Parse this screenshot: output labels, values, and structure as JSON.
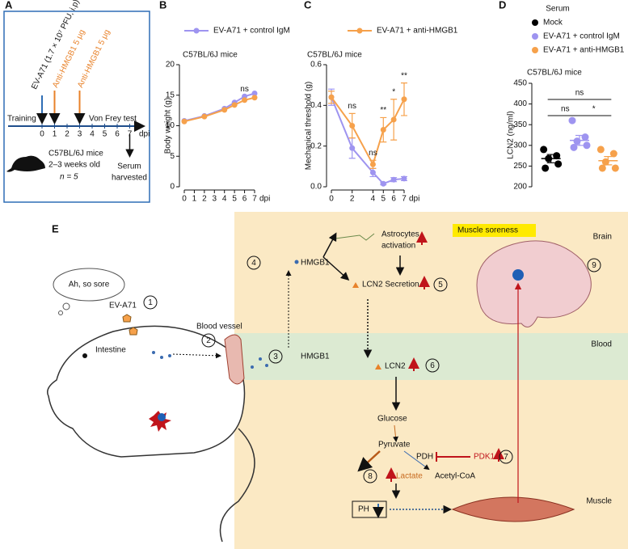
{
  "chart_data": [
    {
      "type": "line",
      "panel": "B",
      "subtitle": "C57BL/6J mice",
      "ylabel": "Body weight (g)",
      "xlabel": "dpi",
      "x": [
        0,
        2,
        4,
        5,
        6,
        7
      ],
      "xlim": [
        0,
        7
      ],
      "xticks": [
        0,
        1,
        2,
        3,
        4,
        5,
        6,
        7
      ],
      "ylim": [
        0,
        20
      ],
      "yticks": [
        0,
        5,
        10,
        15,
        20
      ],
      "series": [
        {
          "color": "#9e94f0",
          "values": [
            10.8,
            11.6,
            12.8,
            13.8,
            14.8,
            15.3
          ]
        },
        {
          "color": "#f6a14b",
          "values": [
            10.7,
            11.5,
            12.6,
            13.4,
            14.2,
            14.6
          ]
        }
      ],
      "annotations": [
        {
          "x": 6,
          "text": "ns"
        }
      ]
    },
    {
      "type": "line",
      "panel": "C",
      "subtitle": "C57BL/6J mice",
      "ylabel": "Mechanical threshold (g)",
      "xlabel": "dpi",
      "x": [
        0,
        2,
        4,
        5,
        6,
        7
      ],
      "xlim": [
        0,
        7
      ],
      "xticks": [
        0,
        2,
        4,
        5,
        6,
        7
      ],
      "ylim": [
        0,
        0.6
      ],
      "yticks": [
        {
          "value": 0,
          "label": "0.0"
        },
        0.2,
        0.4,
        0.6
      ],
      "series": [
        {
          "name": "EV-A71 + control IgM",
          "color": "#9e94f0",
          "values": [
            0.44,
            0.19,
            0.07,
            0.015,
            0.035,
            0.04
          ],
          "errors": [
            0.04,
            0.05,
            0.02,
            0.005,
            0.01,
            0.01
          ]
        },
        {
          "name": "EV-A71 + anti-HMGB1",
          "color": "#f6a14b",
          "values": [
            0.44,
            0.3,
            0.11,
            0.28,
            0.33,
            0.43
          ],
          "errors": [
            0.03,
            0.06,
            0.02,
            0.06,
            0.1,
            0.08
          ]
        }
      ],
      "annotations": [
        {
          "x": 2,
          "text": "ns"
        },
        {
          "x": 4,
          "text": "ns"
        },
        {
          "x": 5,
          "text": "**"
        },
        {
          "x": 6,
          "text": "*"
        },
        {
          "x": 7,
          "text": "**"
        }
      ]
    },
    {
      "type": "dot",
      "panel": "D",
      "title": "Serum",
      "subtitle": "C57BL/6J mice",
      "ylabel": "LCN2 (ng/ml)",
      "ylim": [
        200,
        450
      ],
      "yticks": [
        200,
        250,
        300,
        350,
        400,
        450
      ],
      "series": [
        {
          "name": "Mock",
          "color": "#000000",
          "values": [
            290,
            275,
            268,
            255,
            245
          ],
          "mean": 268,
          "error": 10
        },
        {
          "name": "EV-A71 + control IgM",
          "color": "#9e94f0",
          "values": [
            360,
            320,
            310,
            300,
            295
          ],
          "mean": 312,
          "error": 12
        },
        {
          "name": "EV-A71 + anti-HMGB1",
          "color": "#f6a14b",
          "values": [
            290,
            280,
            260,
            245,
            245
          ],
          "mean": 263,
          "error": 10
        }
      ],
      "annotations": [
        "ns",
        "ns",
        "*"
      ]
    }
  ],
  "panel_a": {
    "label": "A",
    "infection": "EV-A71 (1.7 × 10⁷ PFU, i.p)",
    "treatment_1": "Anti-HMGB1 5 μg",
    "treatment_2": "Anti-HMGB1 5 μg",
    "training": "Training",
    "test": "Von Frey test",
    "ticks": [
      0,
      1,
      2,
      3,
      4,
      5,
      6,
      7
    ],
    "unit": "dpi",
    "strain": "C57BL/6J mice",
    "age": "2–3 weeks old",
    "n": "n = 5",
    "serum": [
      "Serum",
      "harvested"
    ]
  },
  "panel_e": {
    "label": "E",
    "thought": "Ah, so sore",
    "virus": "EV-A71",
    "intestine": "Intestine",
    "vessel": "Blood vessel",
    "hmgb1_blood": "HMGB1",
    "hmgb1_brain": "HMGB1",
    "astro": [
      "Astrocytes",
      "activation"
    ],
    "secretion": "LCN2 Secretion",
    "lcn2": "LCN2",
    "glucose": "Glucose",
    "pyruvate": "Pyruvate",
    "pdh": "PDH",
    "pdk1": "PDK1",
    "lactate": "Lactate",
    "acetyl": "Acetyl-CoA",
    "ph": "PH",
    "soreness": "Muscle soreness",
    "brain": "Brain",
    "blood": "Blood",
    "muscle": "Muscle",
    "steps": [
      "1",
      "2",
      "3",
      "4",
      "5",
      "6",
      "7",
      "8",
      "9"
    ]
  }
}
